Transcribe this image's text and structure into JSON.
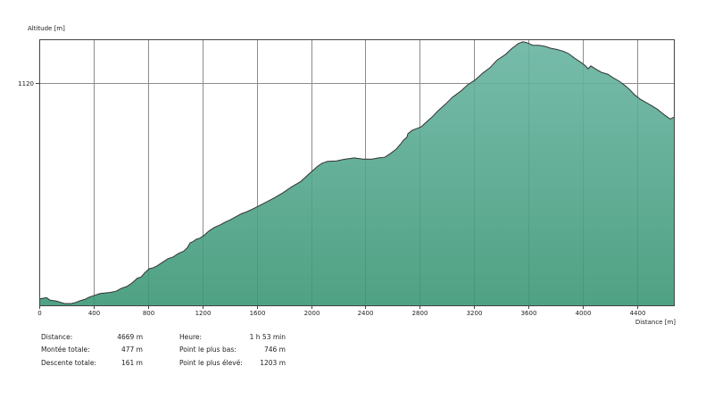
{
  "chart_data": {
    "type": "area",
    "title": "",
    "xlabel": "Distance [m]",
    "ylabel": "Altitude [m]",
    "x_ticks": [
      0,
      400,
      800,
      1200,
      1600,
      2000,
      2400,
      2800,
      3200,
      3600,
      4000,
      4400
    ],
    "y_ticks": [
      1120
    ],
    "xlim": [
      0,
      4669
    ],
    "ylim": [
      743,
      1194
    ],
    "grid": "on",
    "legend": "none",
    "colors": {
      "fill_top": "#68B4A1",
      "fill_bottom": "#3D9877",
      "line": "#333333",
      "grid": "#8C8C8C",
      "frame": "#444444",
      "text": "#222222"
    },
    "series": [
      {
        "name": "elevation-profile",
        "points": [
          [
            0,
            754
          ],
          [
            26,
            755
          ],
          [
            53,
            756
          ],
          [
            79,
            752
          ],
          [
            105,
            751
          ],
          [
            131,
            750
          ],
          [
            158,
            748
          ],
          [
            184,
            746
          ],
          [
            236,
            746
          ],
          [
            269,
            748
          ],
          [
            302,
            751
          ],
          [
            335,
            753
          ],
          [
            368,
            757
          ],
          [
            407,
            760
          ],
          [
            447,
            763
          ],
          [
            486,
            764
          ],
          [
            525,
            765
          ],
          [
            565,
            767
          ],
          [
            604,
            772
          ],
          [
            644,
            775
          ],
          [
            683,
            781
          ],
          [
            722,
            789
          ],
          [
            749,
            791
          ],
          [
            775,
            798
          ],
          [
            808,
            805
          ],
          [
            841,
            807
          ],
          [
            867,
            810
          ],
          [
            906,
            816
          ],
          [
            946,
            822
          ],
          [
            985,
            825
          ],
          [
            1024,
            831
          ],
          [
            1064,
            835
          ],
          [
            1090,
            841
          ],
          [
            1110,
            849
          ],
          [
            1130,
            851
          ],
          [
            1156,
            855
          ],
          [
            1182,
            857
          ],
          [
            1208,
            861
          ],
          [
            1248,
            869
          ],
          [
            1287,
            875
          ],
          [
            1327,
            879
          ],
          [
            1366,
            884
          ],
          [
            1405,
            888
          ],
          [
            1445,
            893
          ],
          [
            1484,
            898
          ],
          [
            1530,
            902
          ],
          [
            1576,
            907
          ],
          [
            1661,
            917
          ],
          [
            1727,
            925
          ],
          [
            1793,
            934
          ],
          [
            1858,
            944
          ],
          [
            1924,
            953
          ],
          [
            1990,
            967
          ],
          [
            2049,
            979
          ],
          [
            2082,
            984
          ],
          [
            2121,
            987
          ],
          [
            2187,
            988
          ],
          [
            2252,
            991
          ],
          [
            2318,
            993
          ],
          [
            2384,
            991
          ],
          [
            2449,
            991
          ],
          [
            2495,
            993
          ],
          [
            2541,
            994
          ],
          [
            2581,
            1000
          ],
          [
            2627,
            1008
          ],
          [
            2660,
            1017
          ],
          [
            2679,
            1023
          ],
          [
            2705,
            1028
          ],
          [
            2712,
            1034
          ],
          [
            2745,
            1040
          ],
          [
            2791,
            1044
          ],
          [
            2811,
            1046
          ],
          [
            2844,
            1053
          ],
          [
            2889,
            1062
          ],
          [
            2935,
            1073
          ],
          [
            2988,
            1084
          ],
          [
            3040,
            1096
          ],
          [
            3100,
            1106
          ],
          [
            3152,
            1117
          ],
          [
            3205,
            1125
          ],
          [
            3264,
            1137
          ],
          [
            3316,
            1146
          ],
          [
            3369,
            1159
          ],
          [
            3428,
            1168
          ],
          [
            3480,
            1179
          ],
          [
            3526,
            1187
          ],
          [
            3559,
            1190
          ],
          [
            3592,
            1188
          ],
          [
            3631,
            1184
          ],
          [
            3677,
            1184
          ],
          [
            3723,
            1182
          ],
          [
            3762,
            1179
          ],
          [
            3808,
            1177
          ],
          [
            3854,
            1174
          ],
          [
            3894,
            1170
          ],
          [
            3940,
            1162
          ],
          [
            3986,
            1155
          ],
          [
            4019,
            1149
          ],
          [
            4038,
            1144
          ],
          [
            4058,
            1149
          ],
          [
            4091,
            1144
          ],
          [
            4137,
            1138
          ],
          [
            4183,
            1135
          ],
          [
            4222,
            1129
          ],
          [
            4268,
            1123
          ],
          [
            4314,
            1115
          ],
          [
            4347,
            1108
          ],
          [
            4380,
            1100
          ],
          [
            4419,
            1093
          ],
          [
            4465,
            1087
          ],
          [
            4511,
            1081
          ],
          [
            4551,
            1075
          ],
          [
            4583,
            1069
          ],
          [
            4623,
            1062
          ],
          [
            4643,
            1059
          ],
          [
            4669,
            1062
          ]
        ]
      }
    ]
  },
  "stats": {
    "col1": [
      {
        "label": "Distance:",
        "value": "4669 m"
      },
      {
        "label": "Montée totale:",
        "value": "477 m"
      },
      {
        "label": "Descente totale:",
        "value": "161 m"
      }
    ],
    "col2": [
      {
        "label": "Heure:",
        "value": "1 h 53 min"
      },
      {
        "label": "Point le plus bas:",
        "value": "746 m"
      },
      {
        "label": "Point le plus élevé:",
        "value": "1203 m"
      }
    ]
  }
}
